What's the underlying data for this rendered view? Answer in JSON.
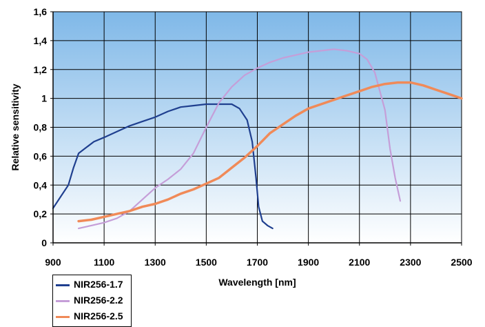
{
  "chart_data": {
    "type": "line",
    "xlabel": "Wavelength [nm]",
    "ylabel": "Relative sensitivity",
    "xlim": [
      900,
      2500
    ],
    "ylim": [
      0,
      1.6
    ],
    "x_ticks": [
      "900",
      "1100",
      "1300",
      "1500",
      "1700",
      "1900",
      "2100",
      "2300",
      "2500"
    ],
    "y_ticks": [
      "0",
      "0,2",
      "0,4",
      "0,6",
      "0,8",
      "1",
      "1,2",
      "1,4",
      "1,6"
    ],
    "grid": true,
    "legend_position": "bottom-left",
    "background_gradient": [
      "#7fb8e8",
      "#ffffff"
    ],
    "series": [
      {
        "name": "NIR256-1.7",
        "color": "#1f3f8f",
        "points": [
          [
            900,
            0.24
          ],
          [
            930,
            0.32
          ],
          [
            960,
            0.4
          ],
          [
            980,
            0.52
          ],
          [
            1000,
            0.62
          ],
          [
            1030,
            0.66
          ],
          [
            1060,
            0.7
          ],
          [
            1100,
            0.73
          ],
          [
            1150,
            0.77
          ],
          [
            1200,
            0.81
          ],
          [
            1250,
            0.84
          ],
          [
            1300,
            0.87
          ],
          [
            1350,
            0.91
          ],
          [
            1400,
            0.94
          ],
          [
            1450,
            0.95
          ],
          [
            1500,
            0.96
          ],
          [
            1550,
            0.96
          ],
          [
            1600,
            0.96
          ],
          [
            1630,
            0.93
          ],
          [
            1660,
            0.85
          ],
          [
            1680,
            0.7
          ],
          [
            1695,
            0.45
          ],
          [
            1705,
            0.25
          ],
          [
            1720,
            0.15
          ],
          [
            1740,
            0.12
          ],
          [
            1760,
            0.1
          ]
        ]
      },
      {
        "name": "NIR256-2.2",
        "color": "#c59ed8",
        "points": [
          [
            1000,
            0.1
          ],
          [
            1050,
            0.12
          ],
          [
            1100,
            0.14
          ],
          [
            1150,
            0.17
          ],
          [
            1200,
            0.22
          ],
          [
            1250,
            0.3
          ],
          [
            1300,
            0.38
          ],
          [
            1350,
            0.44
          ],
          [
            1400,
            0.51
          ],
          [
            1450,
            0.62
          ],
          [
            1500,
            0.8
          ],
          [
            1550,
            0.97
          ],
          [
            1600,
            1.08
          ],
          [
            1650,
            1.16
          ],
          [
            1700,
            1.21
          ],
          [
            1750,
            1.25
          ],
          [
            1800,
            1.28
          ],
          [
            1850,
            1.3
          ],
          [
            1900,
            1.32
          ],
          [
            1950,
            1.33
          ],
          [
            2000,
            1.34
          ],
          [
            2050,
            1.33
          ],
          [
            2100,
            1.31
          ],
          [
            2130,
            1.27
          ],
          [
            2160,
            1.18
          ],
          [
            2180,
            1.05
          ],
          [
            2200,
            0.92
          ],
          [
            2220,
            0.65
          ],
          [
            2240,
            0.45
          ],
          [
            2260,
            0.29
          ]
        ]
      },
      {
        "name": "NIR256-2.5",
        "color": "#f08a58",
        "points": [
          [
            1000,
            0.15
          ],
          [
            1050,
            0.16
          ],
          [
            1100,
            0.18
          ],
          [
            1150,
            0.2
          ],
          [
            1200,
            0.22
          ],
          [
            1250,
            0.25
          ],
          [
            1300,
            0.27
          ],
          [
            1350,
            0.3
          ],
          [
            1400,
            0.34
          ],
          [
            1450,
            0.37
          ],
          [
            1500,
            0.41
          ],
          [
            1550,
            0.45
          ],
          [
            1600,
            0.52
          ],
          [
            1650,
            0.59
          ],
          [
            1700,
            0.67
          ],
          [
            1750,
            0.76
          ],
          [
            1800,
            0.82
          ],
          [
            1850,
            0.88
          ],
          [
            1900,
            0.93
          ],
          [
            1950,
            0.96
          ],
          [
            2000,
            0.99
          ],
          [
            2050,
            1.02
          ],
          [
            2100,
            1.05
          ],
          [
            2150,
            1.08
          ],
          [
            2200,
            1.1
          ],
          [
            2250,
            1.11
          ],
          [
            2300,
            1.11
          ],
          [
            2350,
            1.09
          ],
          [
            2400,
            1.06
          ],
          [
            2450,
            1.03
          ],
          [
            2500,
            1.0
          ]
        ]
      }
    ]
  }
}
